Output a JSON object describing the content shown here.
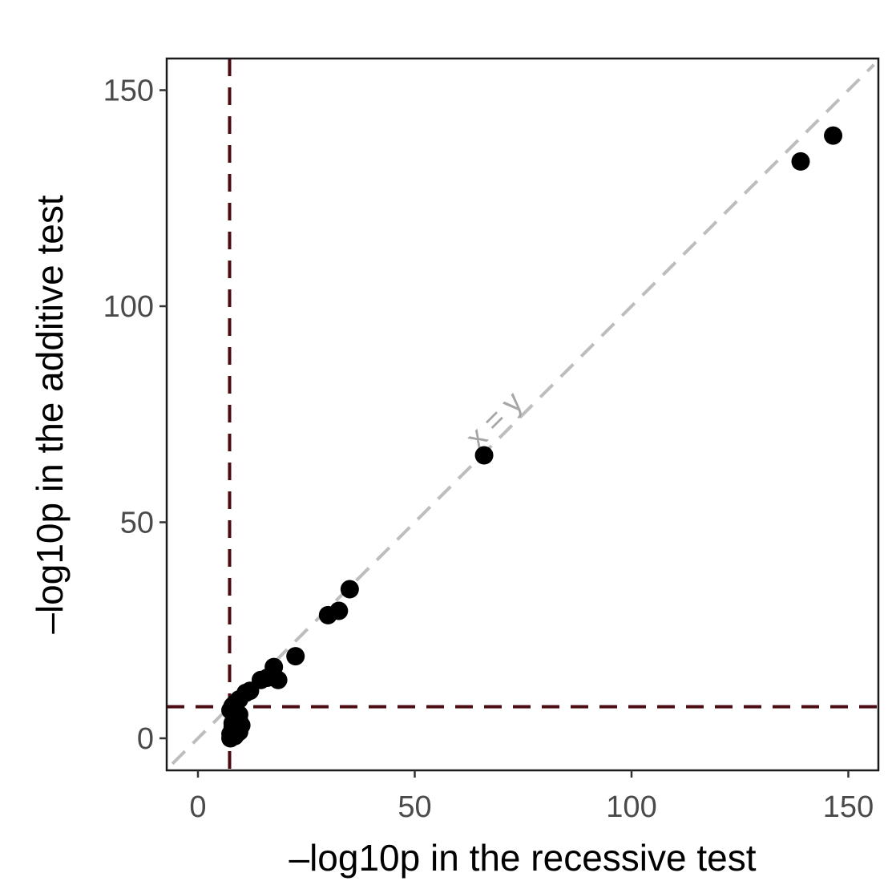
{
  "chart_data": {
    "type": "scatter",
    "xlabel": "–log10p in the recessive test",
    "ylabel": "–log10p in the additive test",
    "xlim": [
      -7,
      158
    ],
    "ylim": [
      -7.5,
      157
    ],
    "x_ticks": [
      {
        "value": 0,
        "label": "0"
      },
      {
        "value": 50,
        "label": "50"
      },
      {
        "value": 100,
        "label": "100"
      },
      {
        "value": 150,
        "label": "150"
      }
    ],
    "y_ticks": [
      {
        "value": 0,
        "label": "0"
      },
      {
        "value": 50,
        "label": "50"
      },
      {
        "value": 100,
        "label": "100"
      },
      {
        "value": 150,
        "label": "150"
      }
    ],
    "grid": false,
    "reference_lines": {
      "diagonal": {
        "label": "x = y",
        "color": "#bdbdbd",
        "style": "dashed"
      },
      "threshold_x": {
        "value": 7.3,
        "color": "#4a0a0f",
        "style": "dashed"
      },
      "threshold_y": {
        "value": 7.3,
        "color": "#4a0a0f",
        "style": "dashed"
      }
    },
    "point_color": "#000000",
    "points": [
      {
        "x": 146.5,
        "y": 139.5
      },
      {
        "x": 139.0,
        "y": 133.5
      },
      {
        "x": 66.0,
        "y": 65.5
      },
      {
        "x": 35.0,
        "y": 34.5
      },
      {
        "x": 32.5,
        "y": 29.5
      },
      {
        "x": 30.0,
        "y": 28.5
      },
      {
        "x": 22.5,
        "y": 19.0
      },
      {
        "x": 17.5,
        "y": 16.5
      },
      {
        "x": 18.5,
        "y": 13.5
      },
      {
        "x": 16.0,
        "y": 14.0
      },
      {
        "x": 14.5,
        "y": 13.5
      },
      {
        "x": 12.0,
        "y": 11.0
      },
      {
        "x": 11.0,
        "y": 10.5
      },
      {
        "x": 9.5,
        "y": 9.0
      },
      {
        "x": 8.5,
        "y": 8.0
      },
      {
        "x": 8.0,
        "y": 7.5
      },
      {
        "x": 7.5,
        "y": 6.5
      },
      {
        "x": 8.0,
        "y": 6.0
      },
      {
        "x": 9.5,
        "y": 5.5
      },
      {
        "x": 8.5,
        "y": 5.0
      },
      {
        "x": 9.5,
        "y": 4.0
      },
      {
        "x": 8.0,
        "y": 3.5
      },
      {
        "x": 10.0,
        "y": 3.0
      },
      {
        "x": 8.0,
        "y": 2.5
      },
      {
        "x": 9.5,
        "y": 1.5
      },
      {
        "x": 7.5,
        "y": 1.0
      },
      {
        "x": 8.5,
        "y": 0.5
      },
      {
        "x": 7.5,
        "y": 0.0
      }
    ]
  }
}
